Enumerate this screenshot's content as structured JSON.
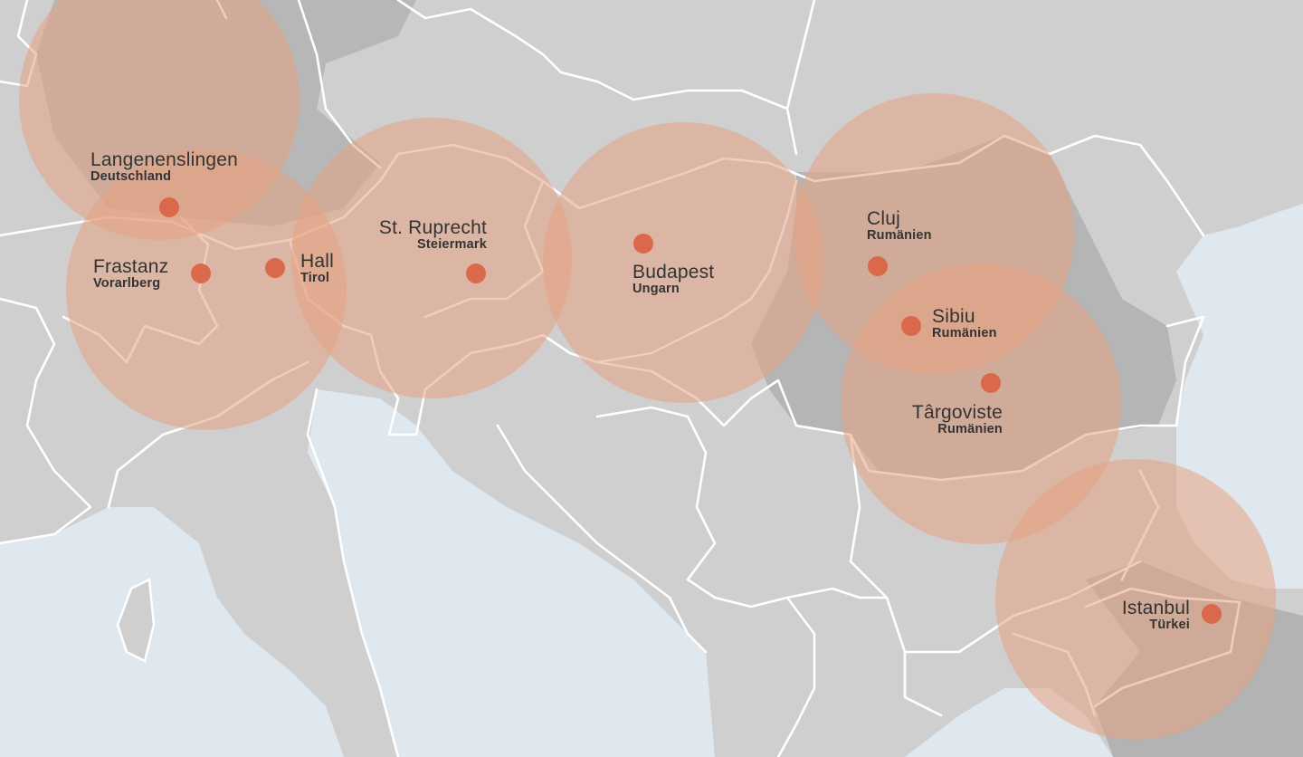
{
  "map": {
    "colors": {
      "land": "#cfcfcf",
      "highlight_land": "#b3b3b3",
      "sea": "#dfe7ef",
      "border": "#ffffff",
      "circle": "#e6a382",
      "marker": "#d9694a"
    },
    "locations": [
      {
        "city": "Langenenslingen",
        "region": "Deutschland"
      },
      {
        "city": "Frastanz",
        "region": "Vorarlberg"
      },
      {
        "city": "Hall",
        "region": "Tirol"
      },
      {
        "city": "St. Ruprecht",
        "region": "Steiermark"
      },
      {
        "city": "Budapest",
        "region": "Ungarn"
      },
      {
        "city": "Cluj",
        "region": "Rumänien"
      },
      {
        "city": "Sibiu",
        "region": "Rumänien"
      },
      {
        "city": "Târgoviste",
        "region": "Rumänien"
      },
      {
        "city": "Istanbul",
        "region": "Türkei"
      }
    ]
  }
}
